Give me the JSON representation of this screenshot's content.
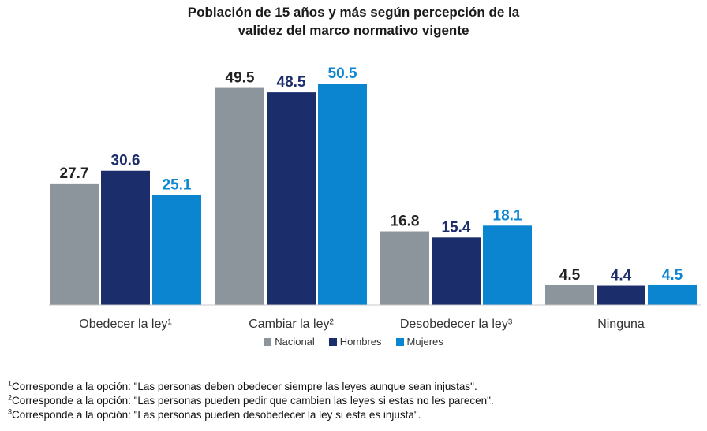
{
  "chart_data": {
    "type": "bar",
    "title": [
      "Población de 15 años y más según percepción de la",
      "validez del marco normativo vigente"
    ],
    "categories": [
      "Obedecer la ley¹",
      "Cambiar la ley²",
      "Desobedecer la ley³",
      "Ninguna"
    ],
    "series": [
      {
        "name": "Nacional",
        "color": "#8c959b",
        "label_color": "#222222",
        "values": [
          27.7,
          49.5,
          16.8,
          4.5
        ]
      },
      {
        "name": "Hombres",
        "color": "#1c2d6b",
        "label_color": "#1c2d6b",
        "values": [
          30.6,
          48.5,
          15.4,
          4.4
        ]
      },
      {
        "name": "Mujeres",
        "color": "#0b85cf",
        "label_color": "#0b85cf",
        "values": [
          25.1,
          50.5,
          18.1,
          4.5
        ]
      }
    ],
    "ylim": [
      0,
      50.5
    ],
    "grid": false,
    "legend_position": "bottom-center",
    "xlabel": "",
    "ylabel": ""
  },
  "footnotes": [
    {
      "mark": "1",
      "text": "Corresponde a la opción: \"Las personas deben obedecer siempre las leyes aunque sean injustas\"."
    },
    {
      "mark": "2",
      "text": "Corresponde a la opción: \"Las personas pueden pedir que cambien las leyes si estas no les parecen\"."
    },
    {
      "mark": "3",
      "text": "Corresponde a la opción: \"Las personas pueden desobedecer la ley si esta es injusta\"."
    }
  ]
}
